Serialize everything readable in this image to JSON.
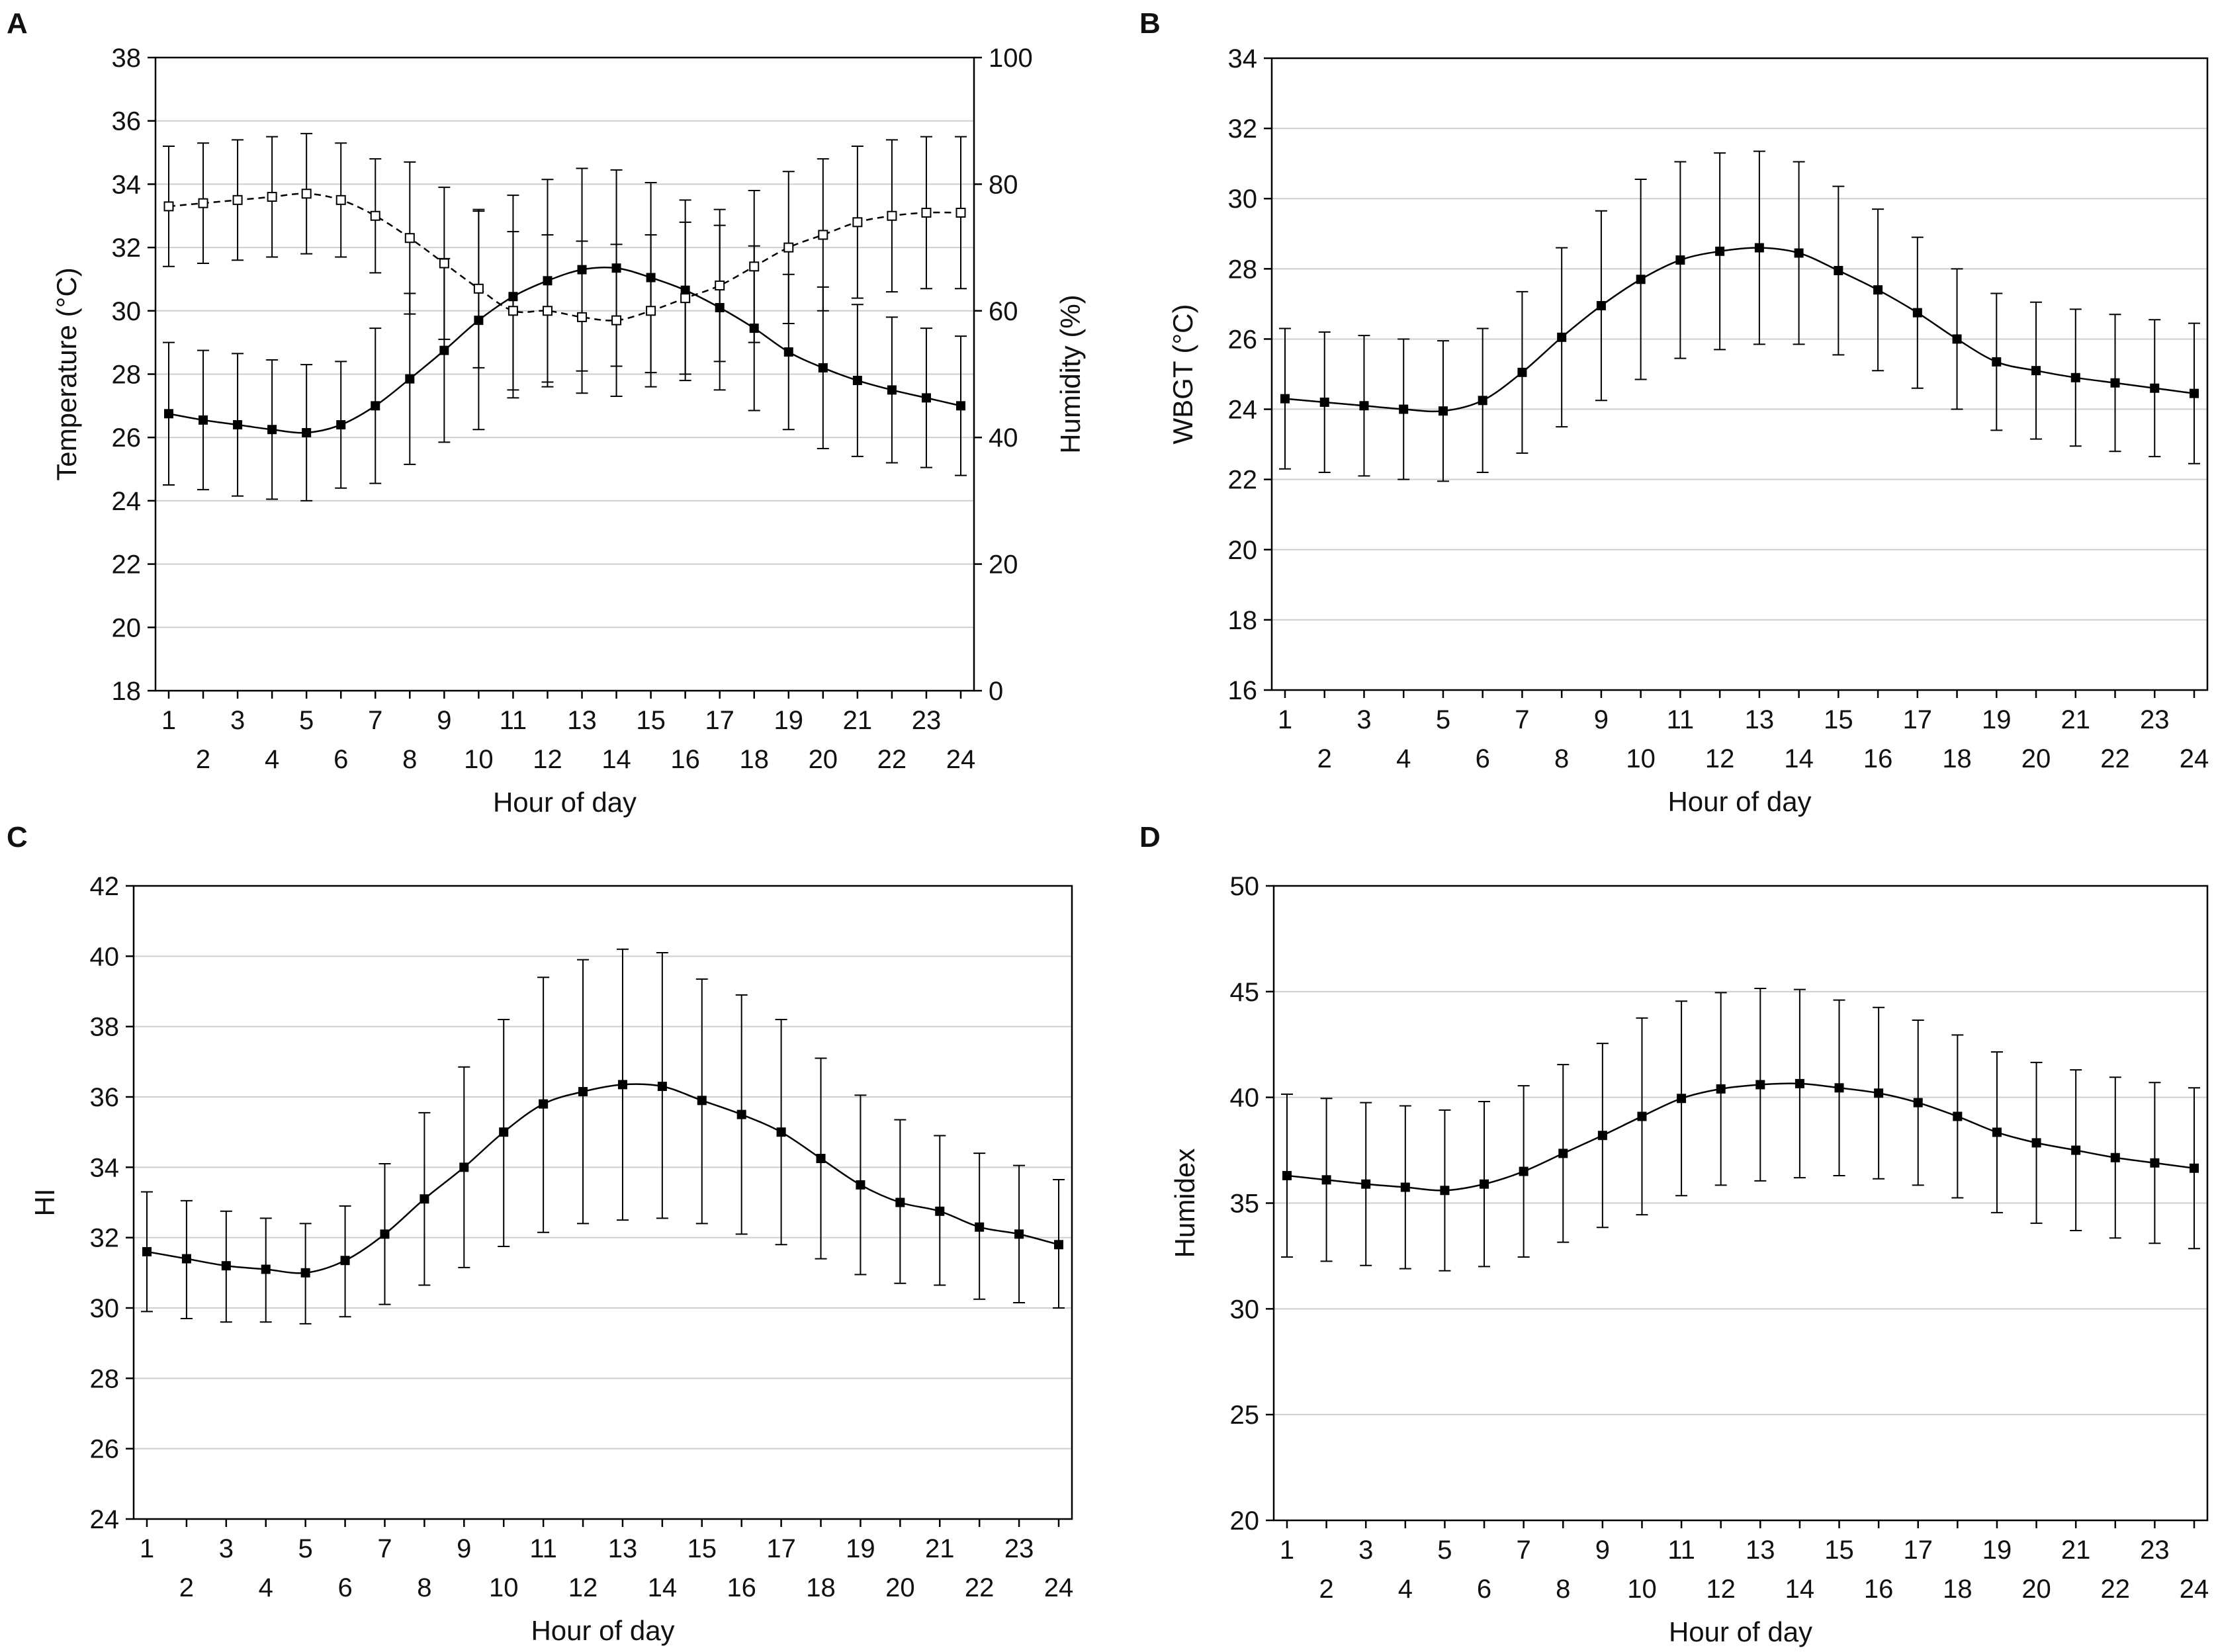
{
  "chart_data": [
    {
      "panel": "A",
      "type": "line",
      "xlabel": "Hour of day",
      "ylabel": "Temperature (°C)",
      "ylim": [
        18,
        38
      ],
      "yticks": [
        18,
        20,
        22,
        24,
        26,
        28,
        30,
        32,
        34,
        36,
        38
      ],
      "y2label": "Humidity (%)",
      "y2lim": [
        0,
        100
      ],
      "y2ticks": [
        0,
        20,
        40,
        60,
        80,
        100
      ],
      "x": [
        1,
        2,
        3,
        4,
        5,
        6,
        7,
        8,
        9,
        10,
        11,
        12,
        13,
        14,
        15,
        16,
        17,
        18,
        19,
        20,
        21,
        22,
        23,
        24
      ],
      "xticks_odd": [
        "1",
        "3",
        "5",
        "7",
        "9",
        "11",
        "13",
        "15",
        "17",
        "19",
        "21",
        "23"
      ],
      "xticks_even": [
        "2",
        "4",
        "6",
        "8",
        "10",
        "12",
        "14",
        "16",
        "18",
        "20",
        "22",
        "24"
      ],
      "grid": true,
      "series": [
        {
          "name": "Temperature",
          "axis": "left",
          "marker": "filled-square",
          "line": "solid",
          "values": [
            26.75,
            26.55,
            26.4,
            26.25,
            26.15,
            26.4,
            27.0,
            27.85,
            28.75,
            29.7,
            30.45,
            30.95,
            31.3,
            31.35,
            31.05,
            30.65,
            30.1,
            29.45,
            28.7,
            28.2,
            27.8,
            27.5,
            27.25,
            27.0
          ],
          "errors": [
            2.25,
            2.2,
            2.25,
            2.2,
            2.15,
            2.0,
            2.45,
            2.7,
            2.9,
            3.45,
            3.2,
            3.2,
            3.2,
            3.1,
            3.0,
            2.85,
            2.6,
            2.6,
            2.45,
            2.55,
            2.4,
            2.3,
            2.2,
            2.2
          ]
        },
        {
          "name": "Humidity",
          "axis": "right",
          "marker": "open-square",
          "line": "dashed",
          "values": [
            76.5,
            77.0,
            77.5,
            78.0,
            78.5,
            77.5,
            75.0,
            71.5,
            67.5,
            63.5,
            60.0,
            60.0,
            59.0,
            58.5,
            60.0,
            62.0,
            64.0,
            67.0,
            70.0,
            72.0,
            74.0,
            75.0,
            75.5,
            75.5
          ],
          "errors": [
            9.5,
            9.5,
            9.5,
            9.5,
            9.5,
            9.0,
            9.0,
            12.0,
            12.0,
            12.5,
            12.5,
            12.0,
            12.0,
            12.0,
            12.0,
            12.0,
            12.0,
            12.0,
            12.0,
            12.0,
            12.0,
            12.0,
            12.0,
            12.0
          ]
        }
      ]
    },
    {
      "panel": "B",
      "type": "line",
      "xlabel": "Hour of day",
      "ylabel": "WBGT (°C)",
      "ylim": [
        16,
        34
      ],
      "yticks": [
        16,
        18,
        20,
        22,
        24,
        26,
        28,
        30,
        32,
        34
      ],
      "x": [
        1,
        2,
        3,
        4,
        5,
        6,
        7,
        8,
        9,
        10,
        11,
        12,
        13,
        14,
        15,
        16,
        17,
        18,
        19,
        20,
        21,
        22,
        23,
        24
      ],
      "xticks_odd": [
        "1",
        "3",
        "5",
        "7",
        "9",
        "11",
        "13",
        "15",
        "17",
        "19",
        "21",
        "23"
      ],
      "xticks_even": [
        "2",
        "4",
        "6",
        "8",
        "10",
        "12",
        "14",
        "16",
        "18",
        "20",
        "22",
        "24"
      ],
      "grid": true,
      "series": [
        {
          "name": "WBGT",
          "marker": "filled-square",
          "line": "solid",
          "values": [
            24.3,
            24.2,
            24.1,
            24.0,
            23.95,
            24.25,
            25.05,
            26.05,
            26.95,
            27.7,
            28.25,
            28.5,
            28.6,
            28.45,
            27.95,
            27.4,
            26.75,
            26.0,
            25.35,
            25.1,
            24.9,
            24.75,
            24.6,
            24.45
          ],
          "errors": [
            2.0,
            2.0,
            2.0,
            2.0,
            2.0,
            2.05,
            2.3,
            2.55,
            2.7,
            2.85,
            2.8,
            2.8,
            2.75,
            2.6,
            2.4,
            2.3,
            2.15,
            2.0,
            1.95,
            1.95,
            1.95,
            1.95,
            1.95,
            2.0
          ]
        }
      ]
    },
    {
      "panel": "C",
      "type": "line",
      "xlabel": "Hour of day",
      "ylabel": "HI",
      "ylim": [
        24,
        42
      ],
      "yticks": [
        24,
        26,
        28,
        30,
        32,
        34,
        36,
        38,
        40,
        42
      ],
      "x": [
        1,
        2,
        3,
        4,
        5,
        6,
        7,
        8,
        9,
        10,
        11,
        12,
        13,
        14,
        15,
        16,
        17,
        18,
        19,
        20,
        21,
        22,
        23,
        24
      ],
      "xticks_odd": [
        "1",
        "3",
        "5",
        "7",
        "9",
        "11",
        "13",
        "15",
        "17",
        "19",
        "21",
        "23"
      ],
      "xticks_even": [
        "2",
        "4",
        "6",
        "8",
        "10",
        "12",
        "14",
        "16",
        "18",
        "20",
        "22",
        "24"
      ],
      "grid": true,
      "series": [
        {
          "name": "HI",
          "marker": "filled-square",
          "line": "solid",
          "values": [
            31.6,
            31.4,
            31.2,
            31.1,
            31.0,
            31.35,
            32.1,
            33.1,
            34.0,
            35.0,
            35.8,
            36.15,
            36.35,
            36.3,
            35.9,
            35.5,
            35.0,
            34.25,
            33.5,
            33.0,
            32.75,
            32.3,
            32.1,
            31.8
          ]
        }
      ],
      "error_bounds": {
        "upper": [
          33.3,
          33.05,
          32.75,
          32.55,
          32.4,
          32.9,
          34.1,
          35.55,
          36.85,
          38.2,
          39.4,
          39.9,
          40.2,
          40.1,
          39.35,
          38.9,
          38.2,
          37.1,
          36.05,
          35.35,
          34.9,
          34.4,
          34.05,
          33.65
        ],
        "lower": [
          29.9,
          29.7,
          29.6,
          29.6,
          29.55,
          29.75,
          30.1,
          30.65,
          31.15,
          31.75,
          32.15,
          32.4,
          32.5,
          32.55,
          32.4,
          32.1,
          31.8,
          31.4,
          30.95,
          30.7,
          30.65,
          30.25,
          30.15,
          30.0
        ]
      }
    },
    {
      "panel": "D",
      "type": "line",
      "xlabel": "Hour of day",
      "ylabel": "Humidex",
      "ylim": [
        20,
        50
      ],
      "yticks": [
        20,
        25,
        30,
        35,
        40,
        45,
        50
      ],
      "x": [
        1,
        2,
        3,
        4,
        5,
        6,
        7,
        8,
        9,
        10,
        11,
        12,
        13,
        14,
        15,
        16,
        17,
        18,
        19,
        20,
        21,
        22,
        23,
        24
      ],
      "xticks_odd": [
        "1",
        "3",
        "5",
        "7",
        "9",
        "11",
        "13",
        "15",
        "17",
        "19",
        "21",
        "23"
      ],
      "xticks_even": [
        "2",
        "4",
        "6",
        "8",
        "10",
        "12",
        "14",
        "16",
        "18",
        "20",
        "22",
        "24"
      ],
      "grid": true,
      "series": [
        {
          "name": "Humidex",
          "marker": "filled-square",
          "line": "solid",
          "values": [
            36.3,
            36.1,
            35.9,
            35.75,
            35.6,
            35.9,
            36.5,
            37.35,
            38.2,
            39.1,
            39.95,
            40.4,
            40.6,
            40.65,
            40.45,
            40.2,
            39.75,
            39.1,
            38.35,
            37.85,
            37.5,
            37.15,
            36.9,
            36.65
          ],
          "errors": [
            3.85,
            3.85,
            3.85,
            3.85,
            3.8,
            3.9,
            4.05,
            4.2,
            4.35,
            4.65,
            4.6,
            4.55,
            4.55,
            4.45,
            4.15,
            4.05,
            3.9,
            3.85,
            3.8,
            3.8,
            3.8,
            3.8,
            3.8,
            3.8
          ]
        }
      ]
    }
  ]
}
